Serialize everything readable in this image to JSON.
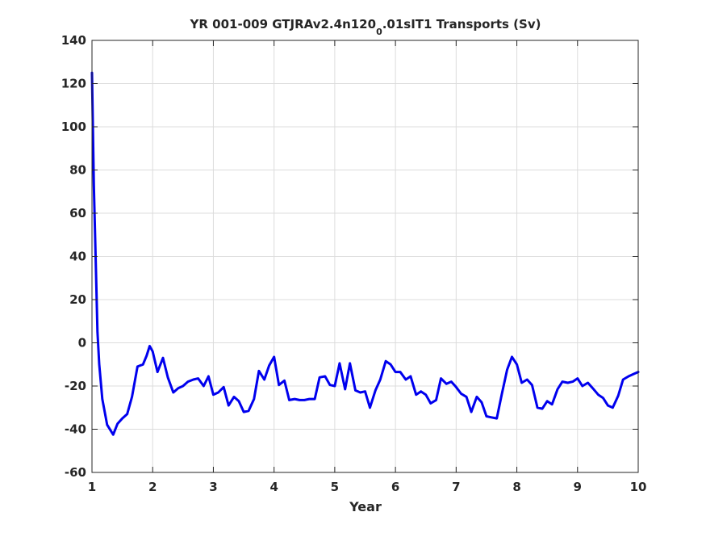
{
  "chart_data": {
    "type": "line",
    "title": {
      "before": "YR 001-009 GTJRAv2.4n120",
      "subscript": "0",
      "after": ".01sIT1 Transports (Sv)"
    },
    "xlabel": "Year",
    "ylabel": "",
    "xlim": [
      1,
      10
    ],
    "ylim": [
      -60,
      140
    ],
    "xticks": [
      1,
      2,
      3,
      4,
      5,
      6,
      7,
      8,
      9,
      10
    ],
    "yticks": [
      -60,
      -40,
      -20,
      0,
      20,
      40,
      60,
      80,
      100,
      120,
      140
    ],
    "grid": true,
    "line_color": "#0000ee",
    "series": [
      {
        "x": [
          1.0,
          1.03,
          1.06,
          1.09,
          1.12,
          1.17,
          1.25,
          1.35,
          1.42,
          1.5,
          1.58,
          1.66,
          1.75,
          1.84,
          1.9,
          1.95,
          2.0,
          2.08,
          2.17,
          2.25,
          2.34,
          2.42,
          2.5,
          2.58,
          2.67,
          2.75,
          2.84,
          2.92,
          3.0,
          3.08,
          3.17,
          3.25,
          3.34,
          3.42,
          3.5,
          3.58,
          3.67,
          3.75,
          3.84,
          3.92,
          4.0,
          4.08,
          4.17,
          4.25,
          4.34,
          4.42,
          4.5,
          4.58,
          4.67,
          4.75,
          4.84,
          4.92,
          5.0,
          5.08,
          5.17,
          5.25,
          5.34,
          5.42,
          5.5,
          5.58,
          5.67,
          5.75,
          5.84,
          5.92,
          6.0,
          6.08,
          6.17,
          6.25,
          6.34,
          6.42,
          6.5,
          6.58,
          6.67,
          6.75,
          6.84,
          6.92,
          7.0,
          7.08,
          7.17,
          7.25,
          7.34,
          7.42,
          7.5,
          7.58,
          7.67,
          7.75,
          7.84,
          7.92,
          8.0,
          8.08,
          8.17,
          8.25,
          8.34,
          8.42,
          8.5,
          8.58,
          8.67,
          8.75,
          8.84,
          8.92,
          9.0,
          9.08,
          9.17,
          9.25,
          9.34,
          9.42,
          9.5,
          9.58,
          9.67,
          9.75,
          9.84,
          9.92,
          10.0
        ],
        "values": [
          125,
          73,
          40,
          5,
          -10,
          -26,
          -38,
          -42.5,
          -37.5,
          -35,
          -33,
          -25,
          -11,
          -10,
          -6,
          -1.5,
          -4,
          -13.5,
          -7,
          -16,
          -23,
          -21,
          -20,
          -18,
          -17,
          -16.5,
          -20,
          -15.5,
          -24,
          -23,
          -20.5,
          -29,
          -25,
          -27,
          -32,
          -31.5,
          -26,
          -13,
          -17,
          -10.5,
          -6.5,
          -19.5,
          -17.5,
          -26.5,
          -26,
          -26.5,
          -26.5,
          -26,
          -26,
          -16,
          -15.5,
          -19.5,
          -20,
          -9.5,
          -21.5,
          -9.5,
          -22,
          -23,
          -22.5,
          -30,
          -22,
          -17,
          -8.5,
          -10,
          -13.5,
          -13.5,
          -17,
          -15.5,
          -24,
          -22.5,
          -24,
          -28,
          -26.5,
          -16.5,
          -19,
          -18,
          -20.5,
          -23.5,
          -25,
          -32,
          -25,
          -27.5,
          -34,
          -34.5,
          -35,
          -24,
          -12.5,
          -6.5,
          -10,
          -18.5,
          -17,
          -19.5,
          -30,
          -30.5,
          -27,
          -28.5,
          -21.5,
          -18,
          -18.5,
          -18,
          -16.5,
          -20,
          -18.5,
          -21,
          -24,
          -25.5,
          -29,
          -30,
          -24.5,
          -17,
          -15.5,
          -14.5,
          -13.5
        ]
      }
    ]
  }
}
